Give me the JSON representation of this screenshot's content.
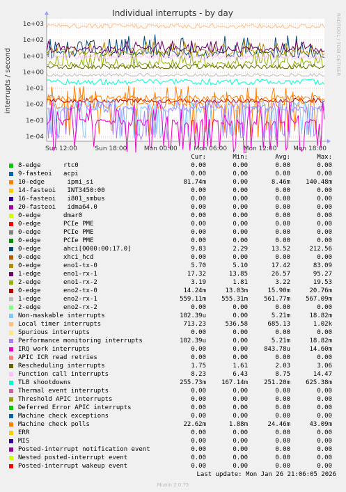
{
  "chart_data": {
    "type": "line",
    "title": "Individual interrupts - by day",
    "ylabel": "interrupts / second",
    "watermark": "RRDTOOL / TOBI OETIKER",
    "scale": "log",
    "ylim": [
      5e-05,
      1000
    ],
    "y_ticks": [
      "1e+03",
      "1e+02",
      "1e+01",
      "1e+00",
      "1e-01",
      "1e-02",
      "1e-03",
      "1e-04"
    ],
    "x_ticks": [
      "Sun 12:00",
      "Sun 18:00",
      "Mon 00:00",
      "Mon 06:00",
      "Mon 12:00",
      "Mon 18:00"
    ],
    "columns": [
      "Cur:",
      "Min:",
      "Avg:",
      "Max:"
    ],
    "series": [
      {
        "name": "8-edge      rtc0",
        "color": "#00cc00",
        "values": [
          "0.00",
          "0.00",
          "0.00",
          "0.00"
        ]
      },
      {
        "name": "9-fasteoi   acpi",
        "color": "#0066b3",
        "values": [
          "0.00",
          "0.00",
          "0.00",
          "0.00"
        ]
      },
      {
        "name": "10-edge      ipmi_si",
        "color": "#ff8000",
        "values": [
          "81.74m",
          "0.00",
          "8.46m",
          "140.48m"
        ]
      },
      {
        "name": "14-fasteoi   INT3450:00",
        "color": "#ffcc00",
        "values": [
          "0.00",
          "0.00",
          "0.00",
          "0.00"
        ]
      },
      {
        "name": "16-fasteoi   i801_smbus",
        "color": "#330099",
        "values": [
          "0.00",
          "0.00",
          "0.00",
          "0.00"
        ]
      },
      {
        "name": "20-fasteoi   idma64.0",
        "color": "#990099",
        "values": [
          "0.00",
          "0.00",
          "0.00",
          "0.00"
        ]
      },
      {
        "name": "0-edge      dmar0",
        "color": "#ccff00",
        "values": [
          "0.00",
          "0.00",
          "0.00",
          "0.00"
        ]
      },
      {
        "name": "0-edge      PCIe PME",
        "color": "#ff0000",
        "values": [
          "0.00",
          "0.00",
          "0.00",
          "0.00"
        ]
      },
      {
        "name": "0-edge      PCIe PME",
        "color": "#808080",
        "values": [
          "0.00",
          "0.00",
          "0.00",
          "0.00"
        ]
      },
      {
        "name": "0-edge      PCIe PME",
        "color": "#008f00",
        "values": [
          "0.00",
          "0.00",
          "0.00",
          "0.00"
        ]
      },
      {
        "name": "0-edge      ahci[0000:00:17.0]",
        "color": "#00487d",
        "values": [
          "9.83",
          "2.29",
          "13.52",
          "212.56"
        ]
      },
      {
        "name": "0-edge      xhci_hcd",
        "color": "#b35a00",
        "values": [
          "0.00",
          "0.00",
          "0.00",
          "0.00"
        ]
      },
      {
        "name": "0-edge      eno1-tx-0",
        "color": "#b38f00",
        "values": [
          "5.70",
          "5.10",
          "17.42",
          "83.09"
        ]
      },
      {
        "name": "1-edge      eno1-rx-1",
        "color": "#6b006b",
        "values": [
          "17.32",
          "13.85",
          "26.57",
          "95.27"
        ]
      },
      {
        "name": "2-edge      eno1-rx-2",
        "color": "#8fb300",
        "values": [
          "3.19",
          "1.81",
          "3.22",
          "19.53"
        ]
      },
      {
        "name": "0-edge      eno2-tx-0",
        "color": "#b30000",
        "values": [
          "14.24m",
          "13.03m",
          "15.90m",
          "20.76m"
        ]
      },
      {
        "name": "1-edge      eno2-rx-1",
        "color": "#bebebe",
        "values": [
          "559.11m",
          "555.31m",
          "561.77m",
          "567.09m"
        ]
      },
      {
        "name": "2-edge      eno2-rx-2",
        "color": "#80ff80",
        "values": [
          "0.00",
          "0.00",
          "0.00",
          "0.00"
        ]
      },
      {
        "name": "Non-maskable interrupts",
        "color": "#80c9ff",
        "values": [
          "102.39u",
          "0.00",
          "5.21m",
          "18.82m"
        ]
      },
      {
        "name": "Local timer interrupts",
        "color": "#ffc080",
        "values": [
          "713.23",
          "536.58",
          "685.13",
          "1.02k"
        ]
      },
      {
        "name": "Spurious interrupts",
        "color": "#ffe680",
        "values": [
          "0.00",
          "0.00",
          "0.00",
          "0.00"
        ]
      },
      {
        "name": "Performance monitoring interrupts",
        "color": "#aa80ff",
        "values": [
          "102.39u",
          "0.00",
          "5.21m",
          "18.82m"
        ]
      },
      {
        "name": "IRQ work interrupts",
        "color": "#ee00cc",
        "values": [
          "0.00",
          "0.00",
          "843.78u",
          "14.60m"
        ]
      },
      {
        "name": "APIC ICR read retries",
        "color": "#ff8080",
        "values": [
          "0.00",
          "0.00",
          "0.00",
          "0.00"
        ]
      },
      {
        "name": "Rescheduling interrupts",
        "color": "#666600",
        "values": [
          "1.75",
          "1.61",
          "2.03",
          "3.06"
        ]
      },
      {
        "name": "Function call interrupts",
        "color": "#ffbfff",
        "values": [
          "8.23",
          "6.43",
          "8.75",
          "14.47"
        ]
      },
      {
        "name": "TLB shootdowns",
        "color": "#00ffcc",
        "values": [
          "255.73m",
          "167.14m",
          "251.20m",
          "625.38m"
        ]
      },
      {
        "name": "Thermal event interrupts",
        "color": "#cc6699",
        "values": [
          "0.00",
          "0.00",
          "0.00",
          "0.00"
        ]
      },
      {
        "name": "Threshold APIC interrupts",
        "color": "#999900",
        "values": [
          "0.00",
          "0.00",
          "0.00",
          "0.00"
        ]
      },
      {
        "name": "Deferred Error APIC interrupts",
        "color": "#00cc00",
        "values": [
          "0.00",
          "0.00",
          "0.00",
          "0.00"
        ]
      },
      {
        "name": "Machine check exceptions",
        "color": "#0066b3",
        "values": [
          "0.00",
          "0.00",
          "0.00",
          "0.00"
        ]
      },
      {
        "name": "Machine check polls",
        "color": "#ff8000",
        "values": [
          "22.62m",
          "1.88m",
          "24.46m",
          "43.09m"
        ]
      },
      {
        "name": "ERR",
        "color": "#ffcc00",
        "values": [
          "0.00",
          "0.00",
          "0.00",
          "0.00"
        ]
      },
      {
        "name": "MIS",
        "color": "#330099",
        "values": [
          "0.00",
          "0.00",
          "0.00",
          "0.00"
        ]
      },
      {
        "name": "Posted-interrupt notification event",
        "color": "#990099",
        "values": [
          "0.00",
          "0.00",
          "0.00",
          "0.00"
        ]
      },
      {
        "name": "Nested posted-interrupt event",
        "color": "#ccff00",
        "values": [
          "0.00",
          "0.00",
          "0.00",
          "0.00"
        ]
      },
      {
        "name": "Posted-interrupt wakeup event",
        "color": "#ff0000",
        "values": [
          "0.00",
          "0.00",
          "0.00",
          "0.00"
        ]
      }
    ]
  },
  "footer": {
    "last_update": "Last update: Mon Jan 26 21:06:05 2026",
    "version": "Munin 2.0.75"
  }
}
